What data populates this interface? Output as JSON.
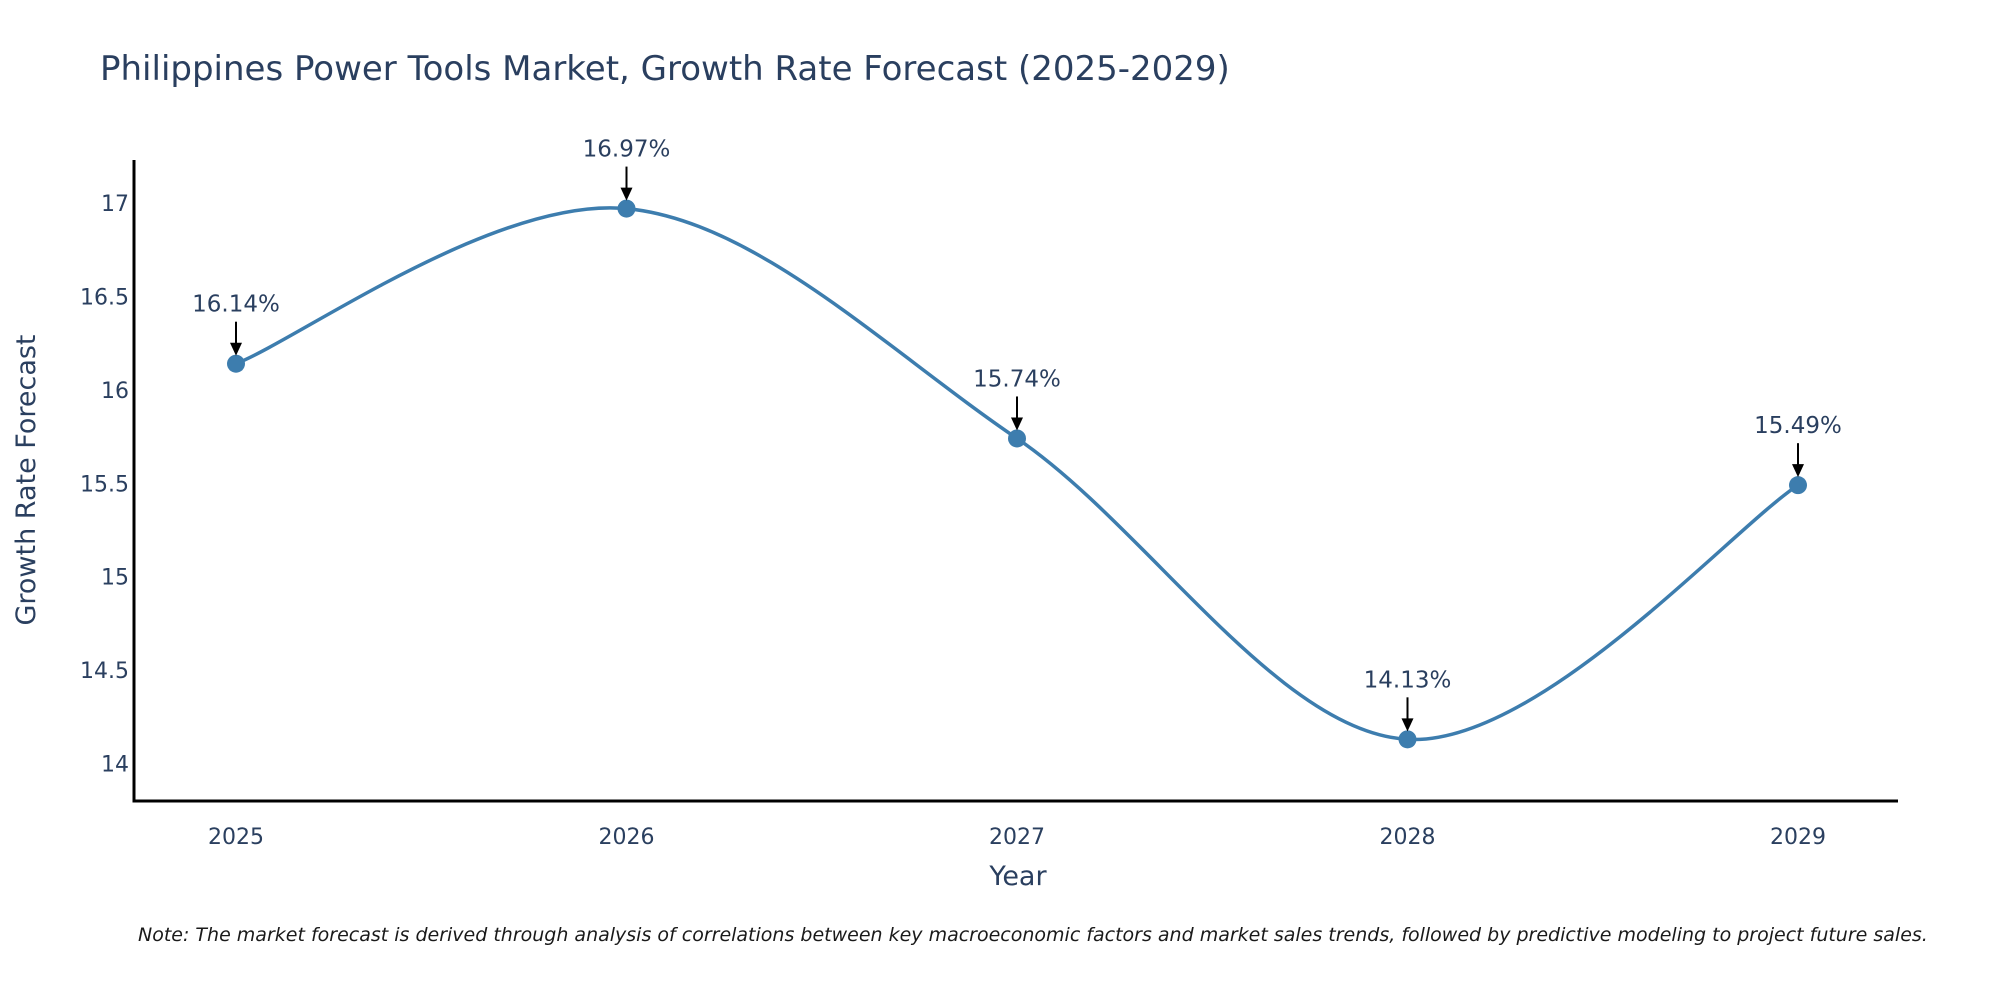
{
  "chart_data": {
    "type": "line",
    "title": "Philippines Power Tools Market, Growth Rate Forecast (2025-2029)",
    "xlabel": "Year",
    "ylabel": "Growth Rate Forecast",
    "categories": [
      "2025",
      "2026",
      "2027",
      "2028",
      "2029"
    ],
    "series": [
      {
        "name": "Growth Rate Forecast",
        "values": [
          16.14,
          16.97,
          15.74,
          14.13,
          15.49
        ],
        "labels": [
          "16.14%",
          "16.97%",
          "15.74%",
          "14.13%",
          "15.49%"
        ]
      }
    ],
    "yticks": [
      14,
      14.5,
      15,
      15.5,
      16,
      16.5,
      17
    ],
    "ytick_labels": [
      "14",
      "14.5",
      "15",
      "15.5",
      "16",
      "16.5",
      "17"
    ],
    "ylim": [
      13.8,
      17.23
    ],
    "grid": false,
    "line_shape": "spline",
    "colors": {
      "line": "#3d7dae",
      "marker": "#3d7dae",
      "axis": "#000000",
      "arrow": "#000000"
    },
    "note": "Note: The market forecast is derived through analysis of correlations between key macroeconomic factors and market sales trends, followed by predictive modeling to project future sales."
  }
}
